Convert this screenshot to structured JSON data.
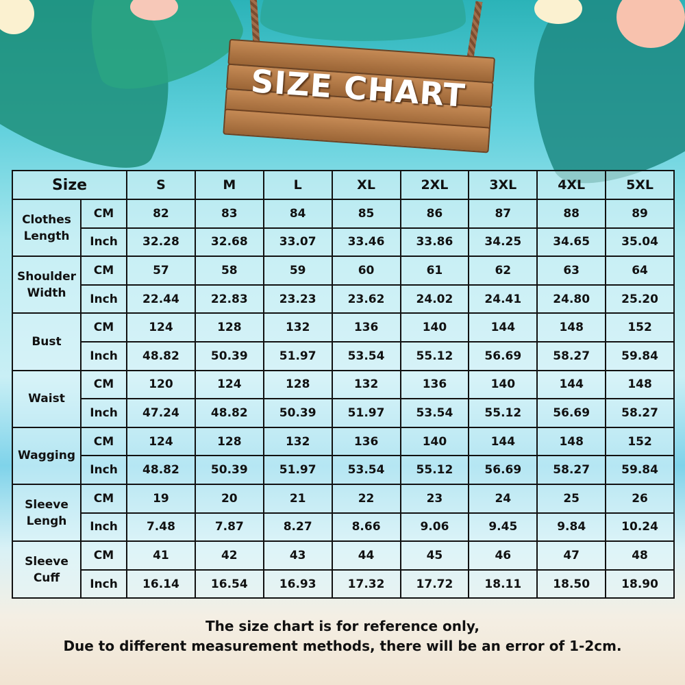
{
  "title": "SIZE CHART",
  "chart_data": {
    "type": "table",
    "corner_header": "Size",
    "columns": [
      "S",
      "M",
      "L",
      "XL",
      "2XL",
      "3XL",
      "4XL",
      "5XL"
    ],
    "rows": [
      {
        "label": [
          "Clothes",
          "Length"
        ],
        "cm": [
          "82",
          "83",
          "84",
          "85",
          "86",
          "87",
          "88",
          "89"
        ],
        "inch": [
          "32.28",
          "32.68",
          "33.07",
          "33.46",
          "33.86",
          "34.25",
          "34.65",
          "35.04"
        ]
      },
      {
        "label": [
          "Shoulder",
          "Width"
        ],
        "cm": [
          "57",
          "58",
          "59",
          "60",
          "61",
          "62",
          "63",
          "64"
        ],
        "inch": [
          "22.44",
          "22.83",
          "23.23",
          "23.62",
          "24.02",
          "24.41",
          "24.80",
          "25.20"
        ]
      },
      {
        "label": [
          "Bust"
        ],
        "cm": [
          "124",
          "128",
          "132",
          "136",
          "140",
          "144",
          "148",
          "152"
        ],
        "inch": [
          "48.82",
          "50.39",
          "51.97",
          "53.54",
          "55.12",
          "56.69",
          "58.27",
          "59.84"
        ]
      },
      {
        "label": [
          "Waist"
        ],
        "cm": [
          "120",
          "124",
          "128",
          "132",
          "136",
          "140",
          "144",
          "148"
        ],
        "inch": [
          "47.24",
          "48.82",
          "50.39",
          "51.97",
          "53.54",
          "55.12",
          "56.69",
          "58.27"
        ]
      },
      {
        "label": [
          "Wagging"
        ],
        "cm": [
          "124",
          "128",
          "132",
          "136",
          "140",
          "144",
          "148",
          "152"
        ],
        "inch": [
          "48.82",
          "50.39",
          "51.97",
          "53.54",
          "55.12",
          "56.69",
          "58.27",
          "59.84"
        ]
      },
      {
        "label": [
          "Sleeve",
          "Lengh"
        ],
        "cm": [
          "19",
          "20",
          "21",
          "22",
          "23",
          "24",
          "25",
          "26"
        ],
        "inch": [
          "7.48",
          "7.87",
          "8.27",
          "8.66",
          "9.06",
          "9.45",
          "9.84",
          "10.24"
        ]
      },
      {
        "label": [
          "Sleeve",
          "Cuff"
        ],
        "cm": [
          "41",
          "42",
          "43",
          "44",
          "45",
          "46",
          "47",
          "48"
        ],
        "inch": [
          "16.14",
          "16.54",
          "16.93",
          "17.32",
          "17.72",
          "18.11",
          "18.50",
          "18.90"
        ]
      }
    ],
    "units": {
      "cm": "CM",
      "inch": "Inch"
    }
  },
  "note": {
    "line1": "The size chart is for reference only,",
    "line2": "Due to different measurement methods, there will be an error of 1-2cm."
  }
}
